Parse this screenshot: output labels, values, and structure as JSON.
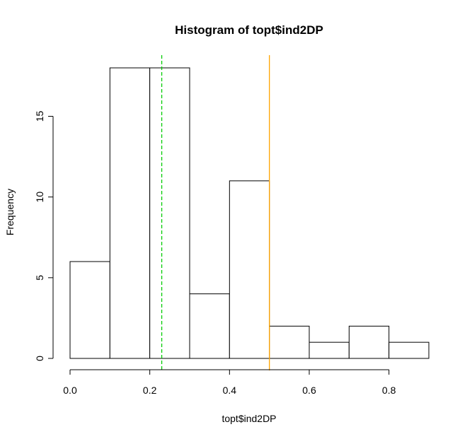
{
  "chart_data": {
    "type": "bar",
    "title": "Histogram of topt$ind2DP",
    "xlabel": "topt$ind2DP",
    "ylabel": "Frequency",
    "bins": [
      {
        "start": 0.0,
        "end": 0.1,
        "count": 6
      },
      {
        "start": 0.1,
        "end": 0.2,
        "count": 18
      },
      {
        "start": 0.2,
        "end": 0.3,
        "count": 18
      },
      {
        "start": 0.3,
        "end": 0.4,
        "count": 4
      },
      {
        "start": 0.4,
        "end": 0.5,
        "count": 11
      },
      {
        "start": 0.5,
        "end": 0.6,
        "count": 2
      },
      {
        "start": 0.6,
        "end": 0.7,
        "count": 1
      },
      {
        "start": 0.7,
        "end": 0.8,
        "count": 2
      },
      {
        "start": 0.8,
        "end": 0.9,
        "count": 1
      }
    ],
    "xlim": [
      0,
      0.9
    ],
    "ylim": [
      0,
      18
    ],
    "xticks": [
      0.0,
      0.2,
      0.4,
      0.6,
      0.8
    ],
    "xtick_labels": [
      "0.0",
      "0.2",
      "0.4",
      "0.6",
      "0.8"
    ],
    "yticks": [
      0,
      5,
      10,
      15
    ],
    "ytick_labels": [
      "0",
      "5",
      "10",
      "15"
    ],
    "grid": false,
    "reference_lines": [
      {
        "x": 0.23,
        "color": "#00cc00",
        "style": "dashed"
      },
      {
        "x": 0.5,
        "color": "#ffa500",
        "style": "solid"
      }
    ],
    "bar_fill": "#ffffff",
    "bar_stroke": "#000000"
  }
}
